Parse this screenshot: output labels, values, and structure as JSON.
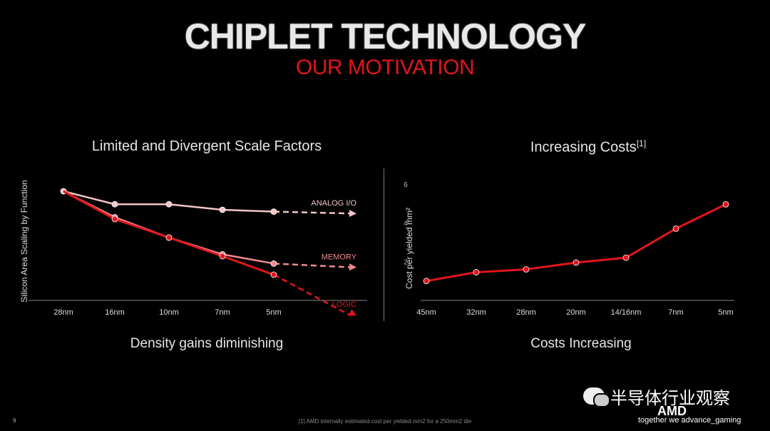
{
  "slide": {
    "title": "CHIPLET TECHNOLOGY",
    "subtitle": "OUR MOTIVATION",
    "page_number": "9",
    "footnote": "[1] AMD internally estimated cost per yielded mm2 for a 250mm2 die",
    "logo": "AMD",
    "tagline": "together we advance_gaming",
    "watermark": "半导体行业观察",
    "colors": {
      "accent": "#e2141c",
      "light_line": "#f0b8bc",
      "mid_line": "#f07a80",
      "background": "#000000"
    }
  },
  "chart_data": [
    {
      "type": "line",
      "title": "Limited and Divergent Scale Factors",
      "caption": "Density gains diminishing",
      "xlabel": "",
      "ylabel": "Silicon Area Scaling by Function",
      "categories": [
        "28nm",
        "16nm",
        "10nm",
        "7nm",
        "5nm"
      ],
      "ylim": [
        0.0,
        1.0
      ],
      "grid": false,
      "series": [
        {
          "name": "ANALOG I/O",
          "color": "#f2c4c6",
          "values": [
            1.0,
            0.93,
            0.93,
            0.9,
            0.89
          ],
          "projected": 0.88
        },
        {
          "name": "MEMORY",
          "color": "#f08a8e",
          "values": [
            1.0,
            0.86,
            0.75,
            0.66,
            0.61
          ],
          "projected": 0.59
        },
        {
          "name": "LOGIC",
          "color": "#e2141c",
          "values": [
            1.0,
            0.85,
            0.75,
            0.65,
            0.55
          ],
          "projected": 0.33
        }
      ]
    },
    {
      "type": "line",
      "title": "Increasing Costs",
      "title_sup": "[1]",
      "caption": "Costs Increasing",
      "xlabel": "",
      "ylabel": "Cost per yielded mm²",
      "categories": [
        "45nm",
        "32nm",
        "28nm",
        "20nm",
        "14/16nm",
        "7nm",
        "5nm"
      ],
      "ylim": [
        0,
        6
      ],
      "yticks": [
        "2",
        "4",
        "6"
      ],
      "grid": false,
      "series": [
        {
          "color": "#e2141c",
          "values": [
            1.0,
            1.45,
            1.6,
            1.95,
            2.2,
            3.7,
            4.95
          ]
        }
      ]
    }
  ]
}
